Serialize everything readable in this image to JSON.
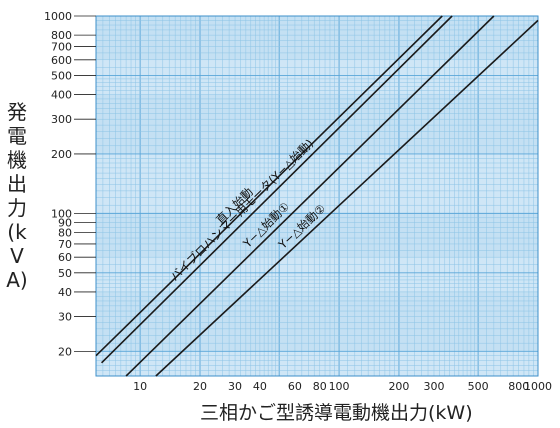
{
  "chart_data": {
    "type": "line",
    "xlabel": "三相かご型誘導電動機出力(kW)",
    "ylabel": "発電機出力(kVA)",
    "x_scale": "log",
    "y_scale": "log",
    "xlim": [
      6,
      1000
    ],
    "ylim": [
      15,
      1000
    ],
    "x_ticks": [
      10,
      20,
      30,
      40,
      60,
      80,
      100,
      200,
      300,
      500,
      800,
      1000
    ],
    "x_tick_labels": [
      "10",
      "20",
      "30",
      "40",
      "60",
      "80",
      "100",
      "200",
      "300",
      "500",
      "800",
      "1000"
    ],
    "y_ticks": [
      20,
      30,
      40,
      50,
      60,
      70,
      80,
      90,
      100,
      200,
      300,
      400,
      500,
      600,
      700,
      800,
      1000
    ],
    "y_tick_labels": [
      "20",
      "30",
      "40",
      "50",
      "60",
      "70",
      "80",
      "90",
      "100",
      "200",
      "300",
      "400",
      "500",
      "600",
      "700",
      "800",
      "1000"
    ],
    "grid": true,
    "series": [
      {
        "name": "直入始動",
        "x": [
          6,
          330
        ],
        "y": [
          19,
          1000
        ]
      },
      {
        "name": "バイブロハンマー用モータ(Y−△始動)",
        "x": [
          6.4,
          370
        ],
        "y": [
          17.5,
          1000
        ]
      },
      {
        "name": "Y−△始動①",
        "x": [
          8.5,
          600
        ],
        "y": [
          15,
          1000
        ]
      },
      {
        "name": "Y−△始動②",
        "x": [
          12,
          1000
        ],
        "y": [
          15,
          950
        ]
      }
    ]
  }
}
